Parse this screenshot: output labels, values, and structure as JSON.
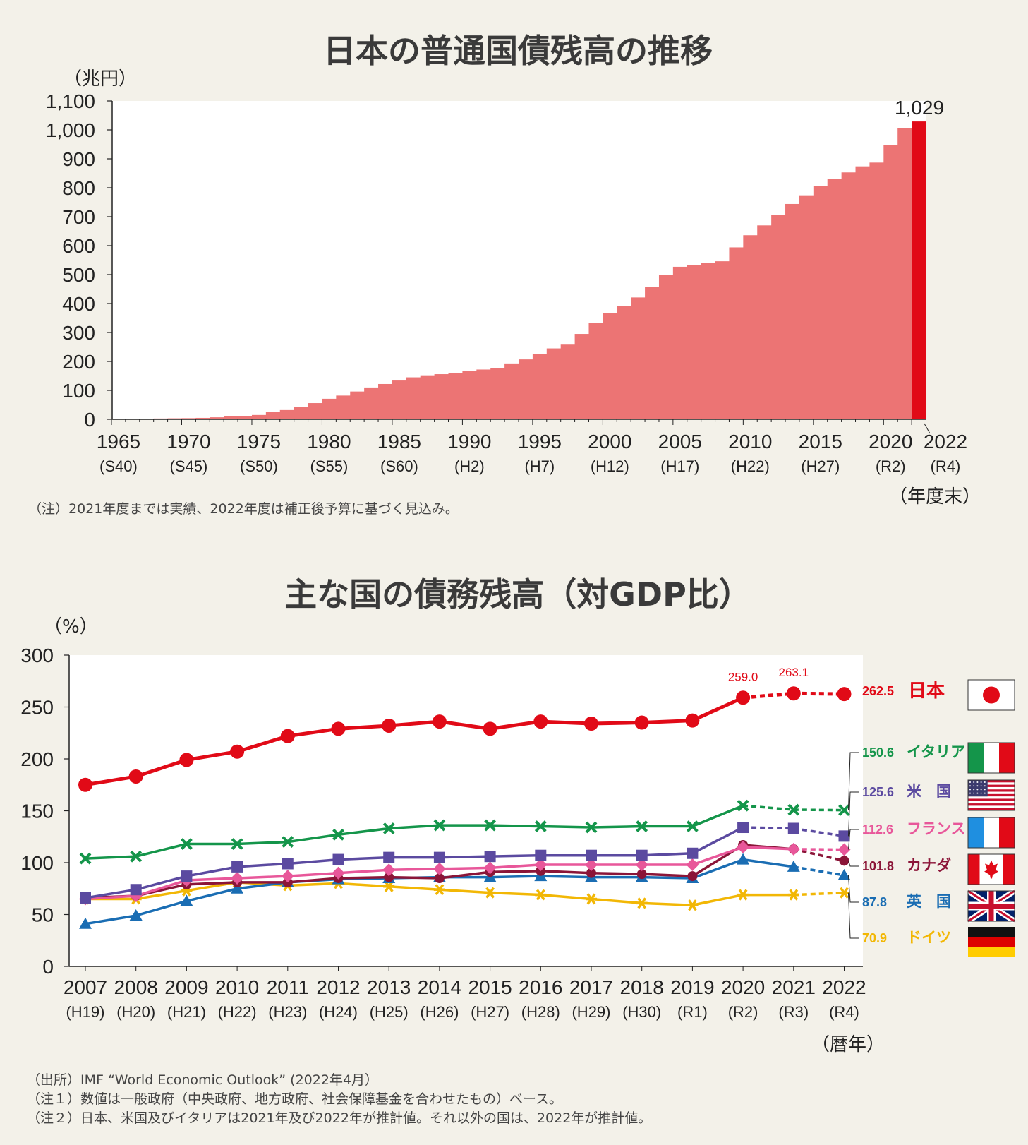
{
  "chart_data": [
    {
      "type": "bar",
      "title": "日本の普通国債残高の推移",
      "ylabel": "（兆円）",
      "xlabel": "（年度末）",
      "ylim": [
        0,
        1100
      ],
      "yticks": [
        "0",
        "100",
        "200",
        "300",
        "400",
        "500",
        "600",
        "700",
        "800",
        "900",
        "1,000",
        "1,100"
      ],
      "x_tick_years": [
        "1965",
        "1970",
        "1975",
        "1980",
        "1985",
        "1990",
        "1995",
        "2000",
        "2005",
        "2010",
        "2015",
        "2020",
        "2022"
      ],
      "x_tick_eras": [
        "(S40)",
        "(S45)",
        "(S50)",
        "(S55)",
        "(S60)",
        "(H2)",
        "(H7)",
        "(H12)",
        "(H17)",
        "(H22)",
        "(H27)",
        "(R2)",
        "(R4)"
      ],
      "categories": [
        1965,
        1966,
        1967,
        1968,
        1969,
        1970,
        1971,
        1972,
        1973,
        1974,
        1975,
        1976,
        1977,
        1978,
        1979,
        1980,
        1981,
        1982,
        1983,
        1984,
        1985,
        1986,
        1987,
        1988,
        1989,
        1990,
        1991,
        1992,
        1993,
        1994,
        1995,
        1996,
        1997,
        1998,
        1999,
        2000,
        2001,
        2002,
        2003,
        2004,
        2005,
        2006,
        2007,
        2008,
        2009,
        2010,
        2011,
        2012,
        2013,
        2014,
        2015,
        2016,
        2017,
        2018,
        2019,
        2020,
        2021,
        2022
      ],
      "values": [
        0.2,
        0.9,
        1.9,
        2.8,
        3.5,
        4,
        5,
        7,
        10,
        12,
        15,
        25,
        32,
        43,
        56,
        71,
        82,
        96,
        110,
        122,
        134,
        145,
        152,
        156,
        161,
        166,
        172,
        178,
        193,
        207,
        225,
        245,
        258,
        295,
        332,
        368,
        392,
        421,
        457,
        499,
        527,
        532,
        541,
        546,
        594,
        636,
        670,
        705,
        744,
        774,
        805,
        831,
        853,
        874,
        887,
        947,
        1005,
        1029
      ],
      "value_label": "1,029",
      "bar_color": "#ec7474",
      "highlight_color": "#e10a17",
      "note": "（注）2021年度までは実績、2022年度は補正後予算に基づく見込み。"
    },
    {
      "type": "line",
      "title": "主な国の債務残高（対GDP比）",
      "ylabel": "（%）",
      "xlabel": "（暦年）",
      "ylim": [
        0,
        300
      ],
      "yticks": [
        "0",
        "50",
        "100",
        "150",
        "200",
        "250",
        "300"
      ],
      "x": [
        "2007",
        "2008",
        "2009",
        "2010",
        "2011",
        "2012",
        "2013",
        "2014",
        "2015",
        "2016",
        "2017",
        "2018",
        "2019",
        "2020",
        "2021",
        "2022"
      ],
      "x_eras": [
        "(H19)",
        "(H20)",
        "(H21)",
        "(H22)",
        "(H23)",
        "(H24)",
        "(H25)",
        "(H26)",
        "(H27)",
        "(H28)",
        "(H29)",
        "(H30)",
        "(R1)",
        "(R2)",
        "(R3)",
        "(R4)"
      ],
      "series": [
        {
          "name": "日本",
          "label": "262.5",
          "color": "#e10a17",
          "marker": "circle",
          "dashed_from": 13,
          "values": [
            175,
            183,
            199,
            207,
            222,
            229,
            232,
            236,
            229,
            236,
            234,
            235,
            237,
            259.0,
            263.1,
            262.5
          ],
          "annotations": [
            {
              "index": 13,
              "text": "259.0"
            },
            {
              "index": 14,
              "text": "263.1"
            }
          ]
        },
        {
          "name": "イタリア",
          "label": "150.6",
          "color": "#14954a",
          "marker": "x",
          "dashed_from": 13,
          "values": [
            104,
            106,
            118,
            118,
            120,
            127,
            133,
            136,
            136,
            135,
            134,
            135,
            135,
            155,
            151,
            150.6
          ]
        },
        {
          "name": "米　国",
          "label": "125.6",
          "color": "#5b4aa0",
          "marker": "square",
          "dashed_from": 13,
          "values": [
            66,
            74,
            87,
            96,
            99,
            103,
            105,
            105,
            106,
            107,
            107,
            107,
            109,
            134,
            133,
            125.6
          ]
        },
        {
          "name": "フランス",
          "label": "112.6",
          "color": "#e8579a",
          "marker": "diamond",
          "dashed_from": 14,
          "values": [
            65,
            68,
            83,
            85,
            87,
            90,
            93,
            94,
            95,
            98,
            98,
            98,
            98,
            115,
            113,
            112.6
          ]
        },
        {
          "name": "カナダ",
          "label": "101.8",
          "color": "#8b1538",
          "marker": "circle-small",
          "dashed_from": 14,
          "values": [
            66,
            68,
            79,
            81,
            81,
            85,
            86,
            85,
            91,
            92,
            90,
            89,
            87,
            117,
            113,
            101.8
          ]
        },
        {
          "name": "英　国",
          "label": "87.8",
          "color": "#1a6db3",
          "marker": "triangle",
          "dashed_from": 14,
          "values": [
            41,
            49,
            63,
            75,
            81,
            84,
            85,
            86,
            86,
            87,
            86,
            86,
            85,
            103,
            96,
            87.8
          ]
        },
        {
          "name": "ドイツ",
          "label": "70.9",
          "color": "#f2b705",
          "marker": "asterisk",
          "dashed_from": 14,
          "values": [
            65,
            65,
            73,
            81,
            78,
            80,
            77,
            74,
            71,
            69,
            65,
            61,
            59,
            69,
            69,
            70.9
          ]
        }
      ],
      "notes": [
        "（出所）IMF “World Economic Outlook” (2022年4月）",
        "（注１）数値は一般政府（中央政府、地方政府、社会保障基金を合わせたもの）ベース。",
        "（注２）日本、米国及びイタリアは2021年及び2022年が推計値。それ以外の国は、2022年が推計値。"
      ]
    }
  ]
}
